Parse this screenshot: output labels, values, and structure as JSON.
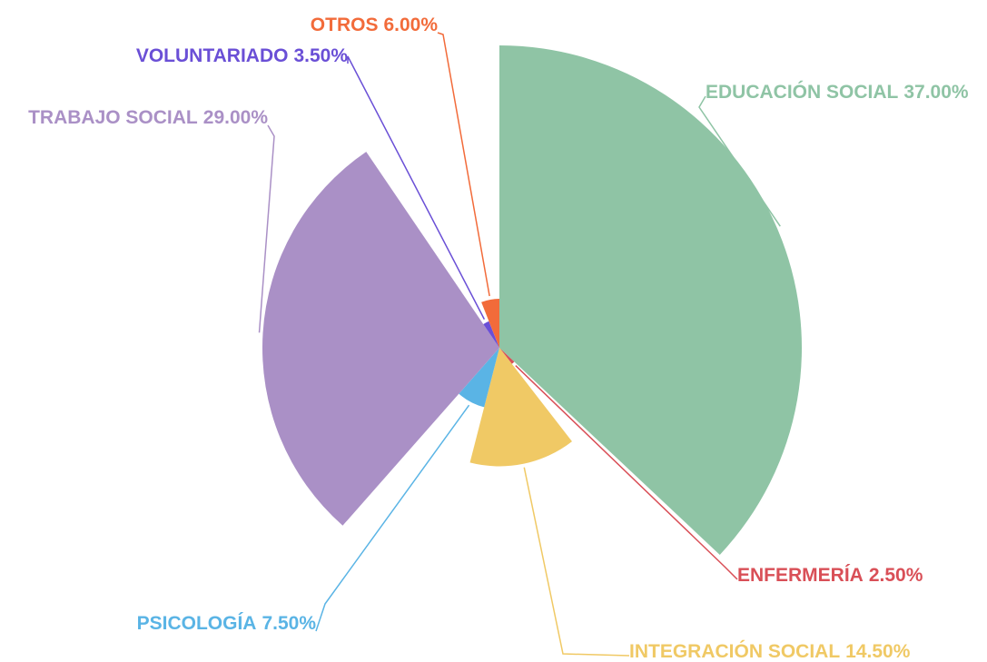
{
  "chart_data": {
    "type": "rose",
    "categories": [
      "EDUCACIÓN SOCIAL",
      "ENFERMERÍA",
      "INTEGRACIÓN SOCIAL",
      "PSICOLOGÍA",
      "TRABAJO SOCIAL",
      "VOLUNTARIADO",
      "OTROS"
    ],
    "values": [
      37,
      2.5,
      14.5,
      7.5,
      29,
      3.5,
      6
    ],
    "value_labels": [
      "37.00%",
      "2.50%",
      "14.50%",
      "7.50%",
      "29.00%",
      "3.50%",
      "6.00%"
    ],
    "colors": [
      "#8fc4a5",
      "#d94f57",
      "#f0c965",
      "#5ab4e5",
      "#aa90c6",
      "#6a4fd6",
      "#f26b3a"
    ]
  }
}
